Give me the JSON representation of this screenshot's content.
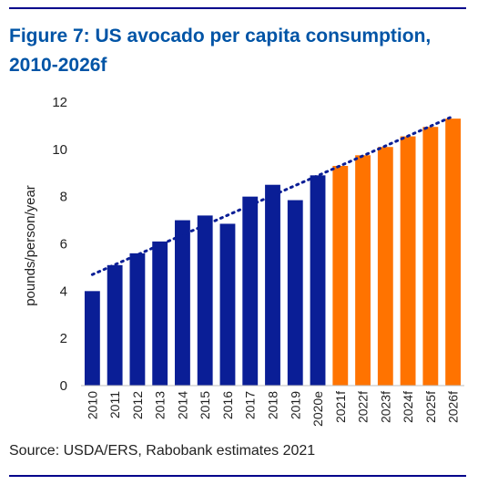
{
  "figure": {
    "title_line1": "Figure 7: US avocado per capita consumption,",
    "title_line2": "2010-2026f",
    "source": "Source: USDA/ERS, Rabobank estimates 2021",
    "colors": {
      "title": "#0054a6",
      "rules": "#00008b"
    }
  },
  "chart_data": {
    "type": "bar",
    "title": "Figure 7: US avocado per capita consumption, 2010-2026f",
    "xlabel": "",
    "ylabel": "pounds/person/year",
    "categories": [
      "2010",
      "2011",
      "2012",
      "2013",
      "2014",
      "2015",
      "2016",
      "2017",
      "2018",
      "2019",
      "2020e",
      "2021f",
      "2022f",
      "2023f",
      "2024f",
      "2025f",
      "2026f"
    ],
    "values": [
      4.0,
      5.1,
      5.6,
      6.1,
      7.0,
      7.2,
      6.85,
      8.0,
      8.5,
      7.85,
      8.9,
      9.3,
      9.75,
      10.1,
      10.55,
      10.95,
      11.3
    ],
    "bar_colors": [
      "#0a1e96",
      "#0a1e96",
      "#0a1e96",
      "#0a1e96",
      "#0a1e96",
      "#0a1e96",
      "#0a1e96",
      "#0a1e96",
      "#0a1e96",
      "#0a1e96",
      "#0a1e96",
      "#ff7300",
      "#ff7300",
      "#ff7300",
      "#ff7300",
      "#ff7300",
      "#ff7300"
    ],
    "ylim": [
      0,
      12
    ],
    "yticks": [
      0,
      2,
      4,
      6,
      8,
      10,
      12
    ],
    "grid": false,
    "trendline": {
      "style": "dotted",
      "color": "#0a1e96",
      "from": [
        "2010",
        4.7
      ],
      "to": [
        "2026f",
        11.4
      ]
    }
  }
}
